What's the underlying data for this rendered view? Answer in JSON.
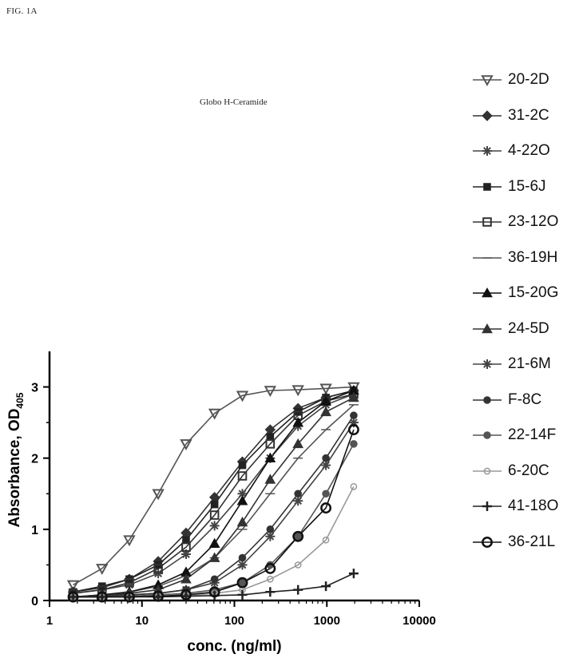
{
  "figure_label": "FIG. 1A",
  "chart_data": {
    "type": "scatter",
    "title": "Globo H-Ceramide",
    "xlabel": "conc. (ng/ml)",
    "ylabel": "Absorbance, OD",
    "ylabel_subscript": "405",
    "xscale": "log",
    "xlim": [
      1,
      10000
    ],
    "ylim": [
      0,
      3.5
    ],
    "xticks": [
      "1",
      "10",
      "100",
      "1000",
      "10000"
    ],
    "yticks": [
      "0",
      "1",
      "2",
      "3"
    ],
    "legend_position": "right",
    "series": [
      {
        "name": "20-2D",
        "marker": "triangle-down",
        "color": "#555555",
        "x": [
          1.8,
          3.7,
          7.3,
          15,
          30,
          61,
          122,
          244,
          488,
          977,
          1953
        ],
        "y": [
          0.22,
          0.45,
          0.85,
          1.5,
          2.2,
          2.63,
          2.88,
          2.95,
          2.96,
          2.98,
          3.0
        ]
      },
      {
        "name": "31-2C",
        "marker": "diamond",
        "color": "#333333",
        "x": [
          1.8,
          3.7,
          7.3,
          15,
          30,
          61,
          122,
          244,
          488,
          977,
          1953
        ],
        "y": [
          0.12,
          0.18,
          0.3,
          0.55,
          0.95,
          1.45,
          1.95,
          2.4,
          2.7,
          2.85,
          2.95
        ]
      },
      {
        "name": "4-22O",
        "marker": "star",
        "color": "#444444",
        "x": [
          1.8,
          3.7,
          7.3,
          15,
          30,
          61,
          122,
          244,
          488,
          977,
          1953
        ],
        "y": [
          0.1,
          0.15,
          0.22,
          0.38,
          0.65,
          1.05,
          1.5,
          2.0,
          2.45,
          2.75,
          2.9
        ]
      },
      {
        "name": "15-6J",
        "marker": "square",
        "color": "#222222",
        "x": [
          1.8,
          3.7,
          7.3,
          15,
          30,
          61,
          122,
          244,
          488,
          977,
          1953
        ],
        "y": [
          0.12,
          0.2,
          0.3,
          0.5,
          0.85,
          1.35,
          1.9,
          2.3,
          2.65,
          2.85,
          2.95
        ]
      },
      {
        "name": "23-12O",
        "marker": "square-open",
        "color": "#333333",
        "x": [
          1.8,
          3.7,
          7.3,
          15,
          30,
          61,
          122,
          244,
          488,
          977,
          1953
        ],
        "y": [
          0.1,
          0.15,
          0.25,
          0.45,
          0.75,
          1.2,
          1.75,
          2.2,
          2.6,
          2.8,
          2.9
        ]
      },
      {
        "name": "36-19H",
        "marker": "none",
        "color": "#555555",
        "x": [
          1.8,
          3.7,
          7.3,
          15,
          30,
          61,
          122,
          244,
          488,
          977,
          1953
        ],
        "y": [
          0.05,
          0.08,
          0.12,
          0.2,
          0.35,
          0.6,
          1.0,
          1.5,
          2.0,
          2.4,
          2.75
        ]
      },
      {
        "name": "15-20G",
        "marker": "triangle",
        "color": "#111111",
        "x": [
          1.8,
          3.7,
          7.3,
          15,
          30,
          61,
          122,
          244,
          488,
          977,
          1953
        ],
        "y": [
          0.05,
          0.08,
          0.12,
          0.22,
          0.4,
          0.8,
          1.4,
          2.0,
          2.5,
          2.8,
          2.95
        ]
      },
      {
        "name": "24-5D",
        "marker": "triangle",
        "color": "#333333",
        "x": [
          1.8,
          3.7,
          7.3,
          15,
          30,
          61,
          122,
          244,
          488,
          977,
          1953
        ],
        "y": [
          0.05,
          0.07,
          0.1,
          0.15,
          0.3,
          0.6,
          1.1,
          1.7,
          2.2,
          2.65,
          2.85
        ]
      },
      {
        "name": "21-6M",
        "marker": "star",
        "color": "#444444",
        "x": [
          1.8,
          3.7,
          7.3,
          15,
          30,
          61,
          122,
          244,
          488,
          977,
          1953
        ],
        "y": [
          0.05,
          0.06,
          0.08,
          0.1,
          0.15,
          0.25,
          0.5,
          0.9,
          1.4,
          1.9,
          2.5
        ]
      },
      {
        "name": "F-8C",
        "marker": "circle",
        "color": "#333333",
        "x": [
          1.8,
          3.7,
          7.3,
          15,
          30,
          61,
          122,
          244,
          488,
          977,
          1953
        ],
        "y": [
          0.05,
          0.06,
          0.08,
          0.1,
          0.15,
          0.3,
          0.6,
          1.0,
          1.5,
          2.0,
          2.6
        ]
      },
      {
        "name": "22-14F",
        "marker": "circle",
        "color": "#555555",
        "x": [
          1.8,
          3.7,
          7.3,
          15,
          30,
          61,
          122,
          244,
          488,
          977,
          1953
        ],
        "y": [
          0.05,
          0.05,
          0.06,
          0.08,
          0.1,
          0.15,
          0.25,
          0.5,
          0.9,
          1.5,
          2.2
        ]
      },
      {
        "name": "6-20C",
        "marker": "open",
        "color": "#999999",
        "x": [
          1.8,
          3.7,
          7.3,
          15,
          30,
          61,
          122,
          244,
          488,
          977,
          1953
        ],
        "y": [
          0.05,
          0.05,
          0.05,
          0.06,
          0.07,
          0.1,
          0.15,
          0.3,
          0.5,
          0.85,
          1.6
        ]
      },
      {
        "name": "41-18O",
        "marker": "plus",
        "color": "#222222",
        "x": [
          1.8,
          3.7,
          7.3,
          15,
          30,
          61,
          122,
          244,
          488,
          977,
          1953
        ],
        "y": [
          0.05,
          0.05,
          0.05,
          0.05,
          0.06,
          0.07,
          0.08,
          0.12,
          0.15,
          0.2,
          0.38
        ]
      },
      {
        "name": "36-21L",
        "marker": "circle-open",
        "color": "#111111",
        "x": [
          1.8,
          3.7,
          7.3,
          15,
          30,
          61,
          122,
          244,
          488,
          977,
          1953
        ],
        "y": [
          0.05,
          0.05,
          0.05,
          0.06,
          0.08,
          0.12,
          0.25,
          0.45,
          0.9,
          1.3,
          2.4
        ]
      }
    ]
  }
}
